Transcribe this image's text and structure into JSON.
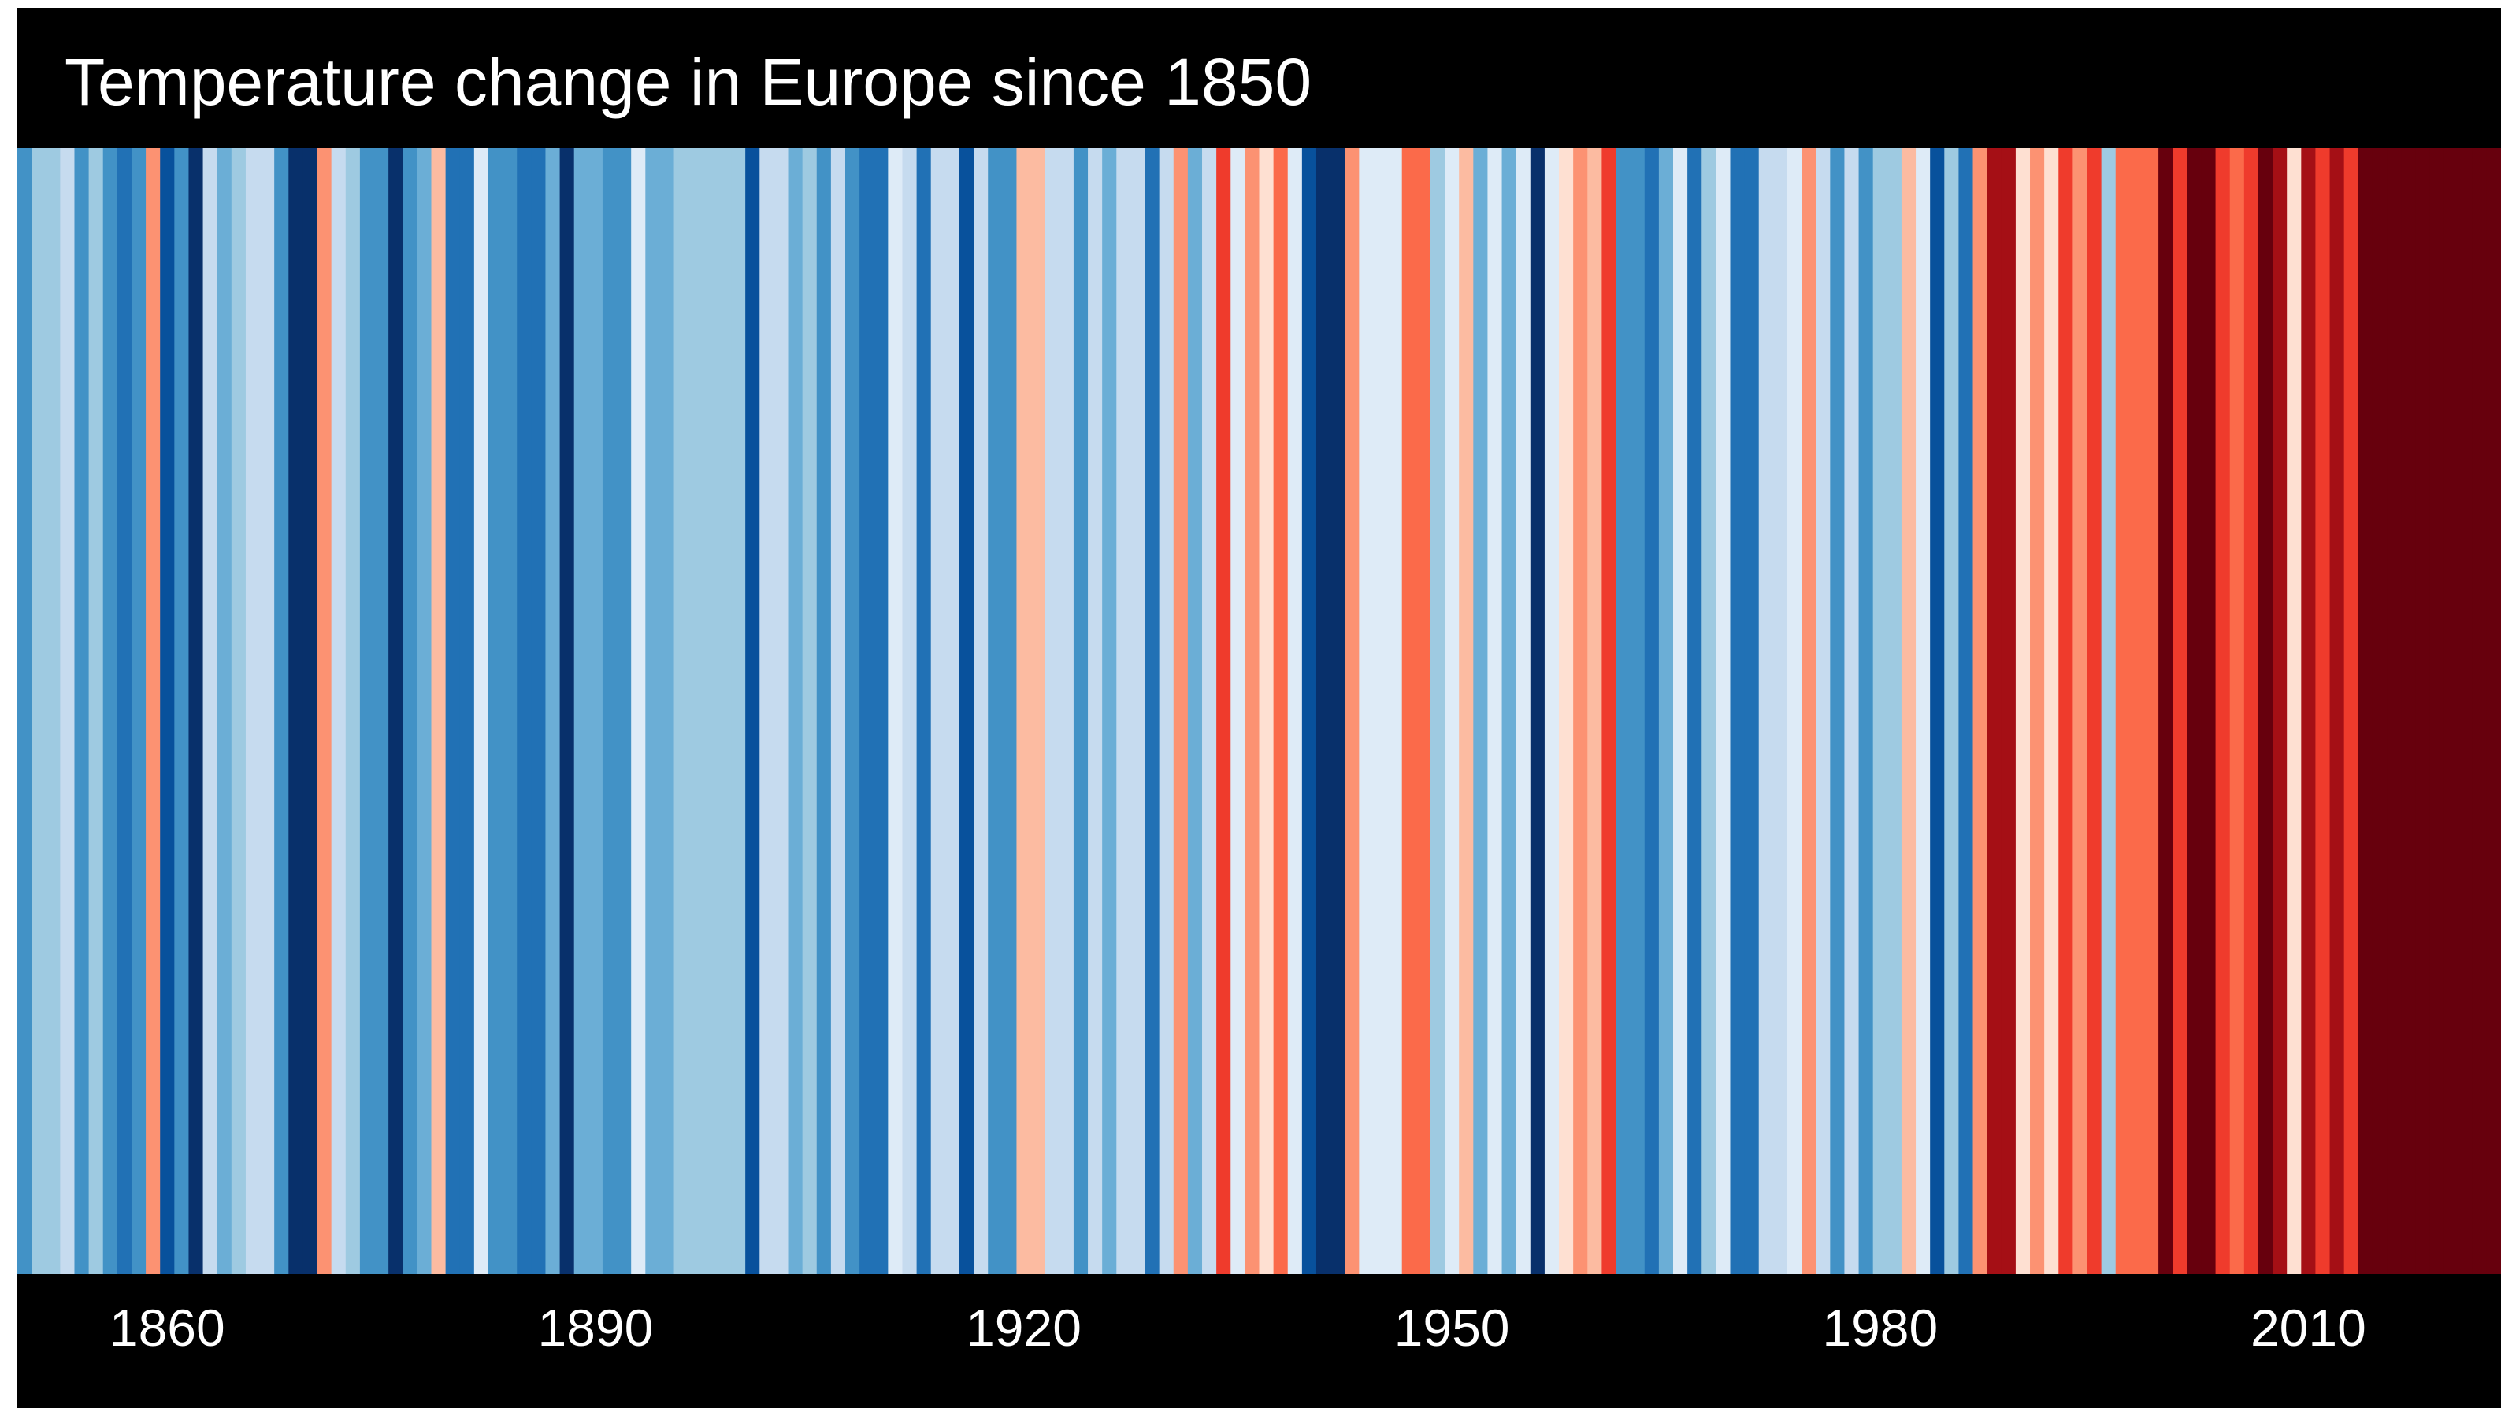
{
  "chart_data": {
    "type": "heatmap",
    "title": "Temperature change in Europe since 1850",
    "xlabel": "",
    "ylabel": "",
    "x_range": [
      1850,
      2023
    ],
    "tick_labels": [
      "1860",
      "1890",
      "1920",
      "1950",
      "1980",
      "2010"
    ],
    "tick_years": [
      1860,
      1890,
      1920,
      1950,
      1980,
      2010
    ],
    "value_unit": "relative anomaly (-1 coldest to +1 warmest)",
    "years": [
      1850,
      1851,
      1852,
      1853,
      1854,
      1855,
      1856,
      1857,
      1858,
      1859,
      1860,
      1861,
      1862,
      1863,
      1864,
      1865,
      1866,
      1867,
      1868,
      1869,
      1870,
      1871,
      1872,
      1873,
      1874,
      1875,
      1876,
      1877,
      1878,
      1879,
      1880,
      1881,
      1882,
      1883,
      1884,
      1885,
      1886,
      1887,
      1888,
      1889,
      1890,
      1891,
      1892,
      1893,
      1894,
      1895,
      1896,
      1897,
      1898,
      1899,
      1900,
      1901,
      1902,
      1903,
      1904,
      1905,
      1906,
      1907,
      1908,
      1909,
      1910,
      1911,
      1912,
      1913,
      1914,
      1915,
      1916,
      1917,
      1918,
      1919,
      1920,
      1921,
      1922,
      1923,
      1924,
      1925,
      1926,
      1927,
      1928,
      1929,
      1930,
      1931,
      1932,
      1933,
      1934,
      1935,
      1936,
      1937,
      1938,
      1939,
      1940,
      1941,
      1942,
      1943,
      1944,
      1945,
      1946,
      1947,
      1948,
      1949,
      1950,
      1951,
      1952,
      1953,
      1954,
      1955,
      1956,
      1957,
      1958,
      1959,
      1960,
      1961,
      1962,
      1963,
      1964,
      1965,
      1966,
      1967,
      1968,
      1969,
      1970,
      1971,
      1972,
      1973,
      1974,
      1975,
      1976,
      1977,
      1978,
      1979,
      1980,
      1981,
      1982,
      1983,
      1984,
      1985,
      1986,
      1987,
      1988,
      1989,
      1990,
      1991,
      1992,
      1993,
      1994,
      1995,
      1996,
      1997,
      1998,
      1999,
      2000,
      2001,
      2002,
      2003,
      2004,
      2005,
      2006,
      2007,
      2008,
      2009,
      2010,
      2011,
      2012,
      2013,
      2014,
      2015,
      2016,
      2017,
      2018,
      2019,
      2020,
      2021,
      2022,
      2023
    ],
    "values": [
      -0.55,
      -0.35,
      -0.35,
      -0.15,
      -0.55,
      -0.35,
      -0.55,
      -0.7,
      -0.55,
      0.25,
      -0.85,
      -0.55,
      -1,
      -0.15,
      -0.45,
      -0.35,
      -0.15,
      -0.15,
      -0.55,
      -1,
      -0.95,
      0.25,
      -0.15,
      -0.35,
      -0.55,
      -0.55,
      -1,
      -0.55,
      -0.45,
      0.15,
      -0.7,
      -0.7,
      -0.05,
      -0.55,
      -0.55,
      -0.7,
      -0.7,
      -0.45,
      -1,
      -0.45,
      -0.45,
      -0.55,
      -0.55,
      -0.05,
      -0.4,
      -0.4,
      -0.3,
      -0.3,
      -0.3,
      -0.3,
      -0.3,
      -0.85,
      -0.15,
      -0.15,
      -0.45,
      -0.3,
      -0.55,
      -0.15,
      -0.55,
      -0.7,
      -0.7,
      -0.05,
      -0.15,
      -0.7,
      -0.15,
      -0.15,
      -0.85,
      -0.15,
      -0.55,
      -0.55,
      0.15,
      0.15,
      -0.15,
      -0.2,
      -0.55,
      -0.2,
      -0.45,
      -0.2,
      -0.2,
      -0.7,
      -0.2,
      0.25,
      -0.45,
      -0.15,
      0.55,
      -0.05,
      0.25,
      0.05,
      0.4,
      -0.05,
      -0.85,
      -1,
      -1,
      0.35,
      -0.1,
      -0.1,
      -0.1,
      0.4,
      0.4,
      -0.35,
      -0.1,
      0.15,
      -0.45,
      -0.1,
      -0.45,
      -0.05,
      -1,
      -0.05,
      0.1,
      0.25,
      0.15,
      0.55,
      -0.55,
      -0.55,
      -0.7,
      -0.45,
      -0.1,
      -0.7,
      -0.3,
      -0.05,
      -0.7,
      -0.7,
      -0.2,
      -0.2,
      -0.05,
      0.35,
      -0.2,
      -0.55,
      -0.2,
      -0.55,
      -0.3,
      -0.35,
      0.15,
      -0.1,
      -0.85,
      -0.35,
      -0.7,
      0.25,
      0.85,
      0.85,
      0.05,
      0.3,
      0.1,
      0.55,
      0.25,
      0.55,
      -0.35,
      0.4,
      0.4,
      0.4,
      0.9,
      0.55,
      0.9,
      0.9,
      0.55,
      0.45,
      0.55,
      0.95,
      0.8,
      0.1,
      0.8,
      0.6,
      0.85,
      0.55,
      0.97,
      0.97,
      0.97,
      0.97,
      0.9,
      0.9,
      0.97,
      0.97,
      0.97,
      0.97,
      0.8,
      0.7
    ]
  },
  "colors": {
    "background": "#000000",
    "text": "#ffffff",
    "scale": [
      "#08306b",
      "#08519c",
      "#2171b5",
      "#4292c6",
      "#6baed6",
      "#9ecae1",
      "#c6dbef",
      "#deebf7",
      "#fee0d2",
      "#fcbba1",
      "#fc9272",
      "#fb6a4a",
      "#ef3b2c",
      "#cb181d",
      "#a50f15",
      "#67000d"
    ]
  }
}
